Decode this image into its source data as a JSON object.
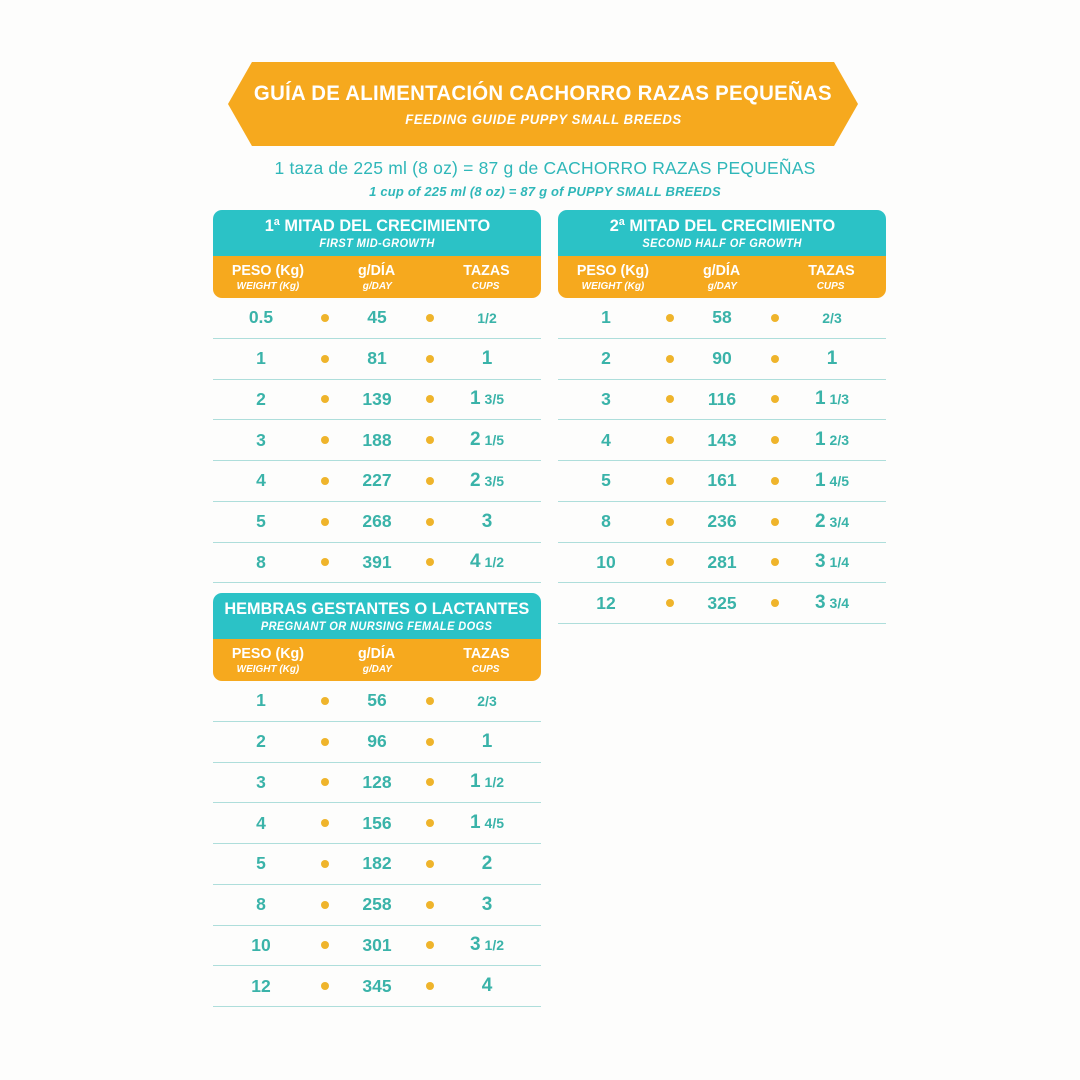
{
  "banner": {
    "title": "GUÍA DE ALIMENTACIÓN CACHORRO RAZAS PEQUEÑAS",
    "subtitle": "FEEDING GUIDE PUPPY SMALL BREEDS"
  },
  "equivalence": {
    "line_es": "1 taza de 225 ml (8 oz) = 87 g de CACHORRO RAZAS PEQUEÑAS",
    "line_en": "1 cup of 225 ml (8 oz) = 87 g of PUPPY SMALL BREEDS"
  },
  "columns": {
    "weight_es": "PESO (Kg)",
    "weight_en": "WEIGHT (Kg)",
    "grams_es": "g/DÍA",
    "grams_en": "g/DAY",
    "cups_es": "TAZAS",
    "cups_en": "CUPS"
  },
  "colors": {
    "orange": "#F6A91E",
    "teal_band": "#2BC2C6",
    "teal_text": "#3AB3A9",
    "divider": "#AEDEDB",
    "dot": "#EFB42B",
    "white": "#FFFFFF"
  },
  "tables": [
    {
      "id": "first-half-growth",
      "title_es": "1ª MITAD DEL CRECIMIENTO",
      "title_en": "FIRST MID-GROWTH",
      "rows": [
        {
          "weight": "0.5",
          "grams": "45",
          "cups": "1/2"
        },
        {
          "weight": "1",
          "grams": "81",
          "cups": "1"
        },
        {
          "weight": "2",
          "grams": "139",
          "cups": "1 3/5"
        },
        {
          "weight": "3",
          "grams": "188",
          "cups": "2 1/5"
        },
        {
          "weight": "4",
          "grams": "227",
          "cups": "2 3/5"
        },
        {
          "weight": "5",
          "grams": "268",
          "cups": "3"
        },
        {
          "weight": "8",
          "grams": "391",
          "cups": "4 1/2"
        }
      ]
    },
    {
      "id": "second-half-growth",
      "title_es": "2ª MITAD DEL CRECIMIENTO",
      "title_en": "SECOND HALF OF GROWTH",
      "rows": [
        {
          "weight": "1",
          "grams": "58",
          "cups": "2/3"
        },
        {
          "weight": "2",
          "grams": "90",
          "cups": "1"
        },
        {
          "weight": "3",
          "grams": "116",
          "cups": "1 1/3"
        },
        {
          "weight": "4",
          "grams": "143",
          "cups": "1 2/3"
        },
        {
          "weight": "5",
          "grams": "161",
          "cups": "1 4/5"
        },
        {
          "weight": "8",
          "grams": "236",
          "cups": "2 3/4"
        },
        {
          "weight": "10",
          "grams": "281",
          "cups": "3 1/4"
        },
        {
          "weight": "12",
          "grams": "325",
          "cups": "3 3/4"
        }
      ]
    },
    {
      "id": "pregnant-nursing",
      "title_es": "HEMBRAS GESTANTES O LACTANTES",
      "title_en": "PREGNANT OR NURSING FEMALE DOGS",
      "rows": [
        {
          "weight": "1",
          "grams": "56",
          "cups": "2/3"
        },
        {
          "weight": "2",
          "grams": "96",
          "cups": "1"
        },
        {
          "weight": "3",
          "grams": "128",
          "cups": "1 1/2"
        },
        {
          "weight": "4",
          "grams": "156",
          "cups": "1 4/5"
        },
        {
          "weight": "5",
          "grams": "182",
          "cups": "2"
        },
        {
          "weight": "8",
          "grams": "258",
          "cups": "3"
        },
        {
          "weight": "10",
          "grams": "301",
          "cups": "3 1/2"
        },
        {
          "weight": "12",
          "grams": "345",
          "cups": "4"
        }
      ]
    }
  ]
}
